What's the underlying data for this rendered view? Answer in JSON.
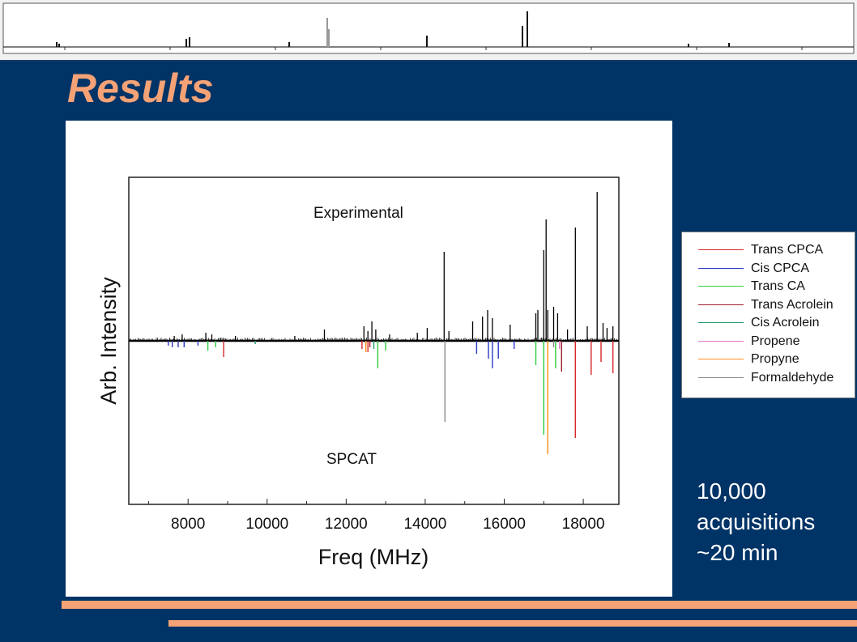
{
  "slide": {
    "title": "Results",
    "acquisitions_line1": "10,000",
    "acquisitions_line2": "acquisitions",
    "acquisitions_line3": "~20 min"
  },
  "colors": {
    "background": "#003366",
    "title": "#f4a276",
    "accent_bar": "#f4a276"
  },
  "legend": {
    "items": [
      {
        "label": "Trans CPCA",
        "color": "#d62728"
      },
      {
        "label": "Cis CPCA",
        "color": "#2b3cc4"
      },
      {
        "label": "Trans CA",
        "color": "#2ecc40"
      },
      {
        "label": "Trans Acrolein",
        "color": "#9e1b2a"
      },
      {
        "label": "Cis Acrolein",
        "color": "#1f9e6a"
      },
      {
        "label": "Propene",
        "color": "#e377c2"
      },
      {
        "label": "Propyne",
        "color": "#ff8c1a"
      },
      {
        "label": "Formaldehyde",
        "color": "#888888"
      }
    ]
  },
  "chart_data": {
    "type": "line",
    "xlabel": "Freq (MHz)",
    "ylabel": "Arb. Intensity",
    "xlim": [
      6500,
      18900
    ],
    "ylim": [
      -1.0,
      1.0
    ],
    "x_ticks": [
      8000,
      10000,
      12000,
      14000,
      16000,
      18000
    ],
    "annotations": {
      "upper": "Experimental",
      "lower": "SPCAT"
    },
    "grid": false,
    "legend_placement": "outside-right",
    "series": [
      {
        "name": "Experimental",
        "color": "#000000",
        "x": [
          7650,
          7850,
          8450,
          8600,
          9200,
          10700,
          11450,
          12450,
          12550,
          12650,
          12750,
          13100,
          13800,
          14050,
          14480,
          14600,
          15200,
          15450,
          15580,
          15700,
          16150,
          16800,
          16850,
          17000,
          17060,
          17100,
          17250,
          17350,
          17600,
          17800,
          18100,
          18350,
          18500,
          18600,
          18750
        ],
        "y": [
          0.03,
          0.04,
          0.05,
          0.04,
          0.03,
          0.03,
          0.07,
          0.09,
          0.06,
          0.12,
          0.07,
          0.04,
          0.05,
          0.08,
          0.55,
          0.06,
          0.12,
          0.15,
          0.19,
          0.14,
          0.1,
          0.17,
          0.19,
          0.56,
          0.75,
          0.19,
          0.21,
          0.17,
          0.07,
          0.7,
          0.09,
          0.92,
          0.11,
          0.08,
          0.09
        ]
      },
      {
        "name": "Trans CPCA",
        "color": "#d62728",
        "x": [
          8900,
          12400,
          12550,
          17800,
          18200,
          18450,
          18750
        ],
        "y": [
          -0.1,
          -0.05,
          -0.07,
          -0.6,
          -0.21,
          -0.13,
          -0.2
        ]
      },
      {
        "name": "Cis CPCA",
        "color": "#2b3cc4",
        "x": [
          7500,
          7600,
          7750,
          7900,
          8250,
          15300,
          15600,
          15700,
          15850,
          16250
        ],
        "y": [
          -0.03,
          -0.04,
          -0.04,
          -0.04,
          -0.03,
          -0.08,
          -0.11,
          -0.17,
          -0.11,
          -0.05
        ]
      },
      {
        "name": "Trans CA",
        "color": "#2ecc40",
        "x": [
          8500,
          8700,
          12800,
          13000,
          16800,
          17000,
          17300
        ],
        "y": [
          -0.06,
          -0.04,
          -0.17,
          -0.06,
          -0.15,
          -0.58,
          -0.17
        ]
      },
      {
        "name": "Trans Acrolein",
        "color": "#9e1b2a",
        "x": [
          12600,
          17450
        ],
        "y": [
          -0.04,
          -0.19
        ]
      },
      {
        "name": "Cis Acrolein",
        "color": "#1f9e6a",
        "x": [
          9700,
          12700
        ],
        "y": [
          -0.02,
          -0.05
        ]
      },
      {
        "name": "Propene",
        "color": "#e377c2",
        "x": [
          17400
        ],
        "y": [
          -0.05
        ]
      },
      {
        "name": "Propyne",
        "color": "#ff8c1a",
        "x": [
          12500,
          17100
        ],
        "y": [
          -0.07,
          -0.7
        ]
      },
      {
        "name": "Formaldehyde",
        "color": "#888888",
        "x": [
          14500,
          17250
        ],
        "y": [
          -0.5,
          -0.04
        ]
      }
    ]
  }
}
